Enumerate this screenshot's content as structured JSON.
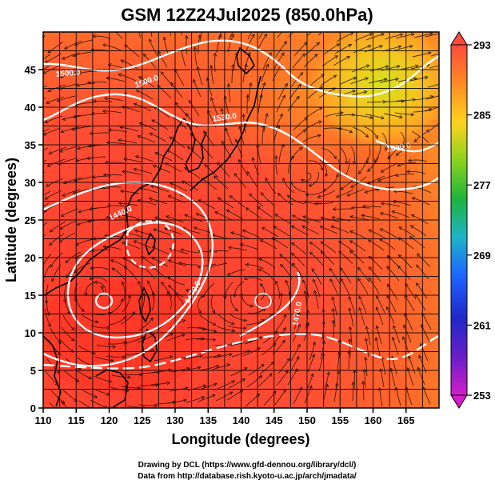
{
  "title": "GSM 12Z24Jul2025 (850.0hPa)",
  "axes": {
    "xlabel": "Longitude (degrees)",
    "ylabel": "Latitude  (degrees)",
    "x_ticks": [
      "110",
      "115",
      "120",
      "125",
      "130",
      "135",
      "140",
      "145",
      "150",
      "155",
      "160",
      "165"
    ],
    "y_ticks": [
      "0",
      "5",
      "10",
      "15",
      "20",
      "25",
      "30",
      "35",
      "40",
      "45"
    ]
  },
  "colorbar": {
    "labels": [
      "293",
      "285",
      "277",
      "269",
      "261",
      "253"
    ],
    "colors": [
      "#ff4b3c",
      "#ff8a24",
      "#ffd21e",
      "#8ad21e",
      "#1eb43c",
      "#1eb4c8",
      "#1e64ff",
      "#1e28c8",
      "#6a1ec8",
      "#d21ec8"
    ]
  },
  "contour_labels": [
    "1500.0",
    "1530.0",
    "1530.0",
    "1440.0",
    "1470.0",
    "1470.0",
    "1500.0"
  ],
  "credits": [
    "Drawing by DCL (https://www.gfd-dennou.org/library/dcl/)",
    "Data from http://database.rish.kyoto-u.ac.jp/arch/jmadata/"
  ],
  "chart_data": {
    "type": "heatmap",
    "title": "GSM 12Z24Jul2025 (850.0hPa)",
    "xlabel": "Longitude (degrees)",
    "ylabel": "Latitude  (degrees)",
    "xlim": [
      110,
      170
    ],
    "ylim": [
      0,
      50
    ],
    "colorbar_range": [
      253,
      293
    ],
    "colorbar_ticks": [
      293,
      285,
      277,
      269,
      261,
      253
    ],
    "contours": [
      {
        "label": "1500.0",
        "value": 1500
      },
      {
        "label": "1530.0",
        "value": 1530
      },
      {
        "label": "1440.0",
        "value": 1440
      },
      {
        "label": "1470.0",
        "value": 1470
      }
    ],
    "vortex_centers": [
      {
        "lon": 118,
        "lat": 15.5
      },
      {
        "lon": 142.5,
        "lat": 15.5
      },
      {
        "lon": 149.5,
        "lat": 30.5
      }
    ]
  }
}
